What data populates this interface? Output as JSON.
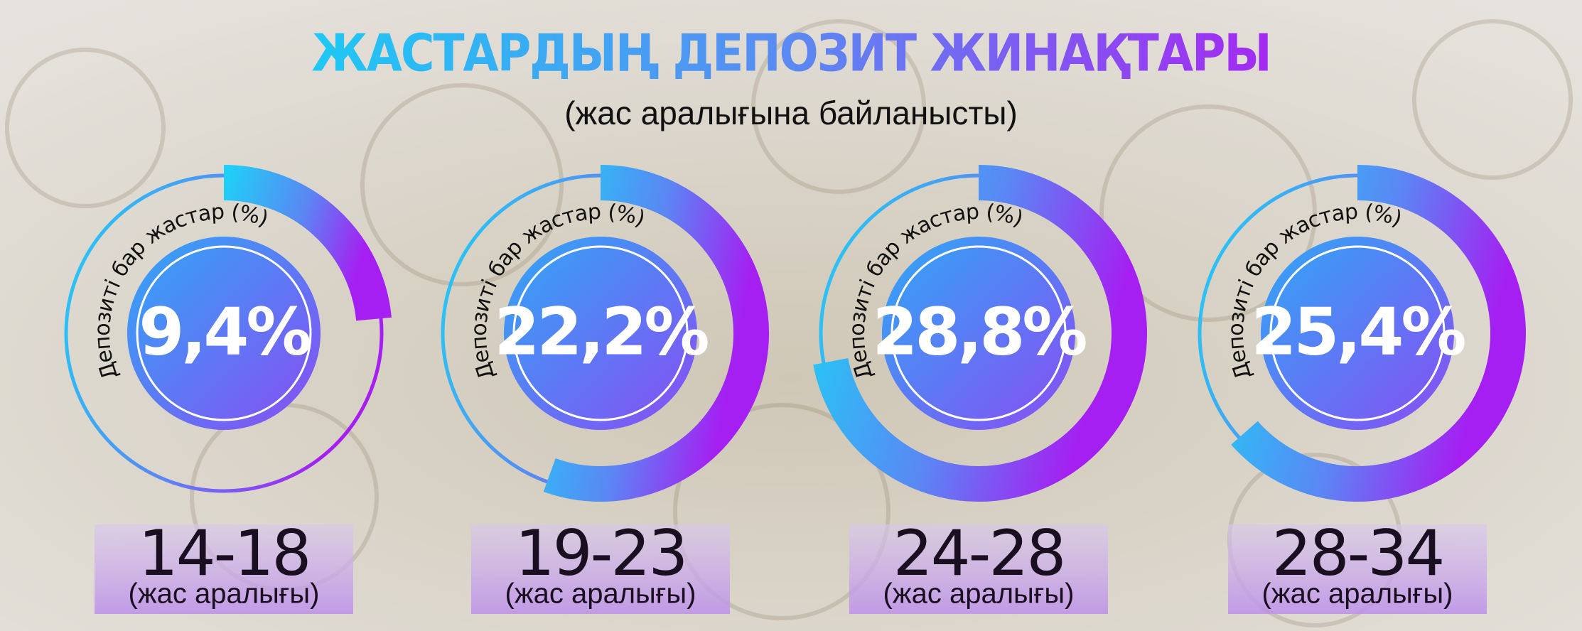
{
  "chart_data": {
    "type": "gauge",
    "title": "ЖАСТАРДЫҢ ДЕПОЗИТ ЖИНАҚТАРЫ",
    "subtitle": "(жас аралығына байланысты)",
    "series_label": "Депозиті бар жастар (%)",
    "category_note": "(жас аралығы)",
    "categories": [
      "14-18",
      "19-23",
      "24-28",
      "28-34"
    ],
    "values": [
      9.4,
      22.2,
      28.8,
      25.4
    ],
    "value_labels": [
      "9,4%",
      "22,2%",
      "28,8%",
      "25,4%"
    ],
    "ylim": [
      0,
      40
    ]
  }
}
